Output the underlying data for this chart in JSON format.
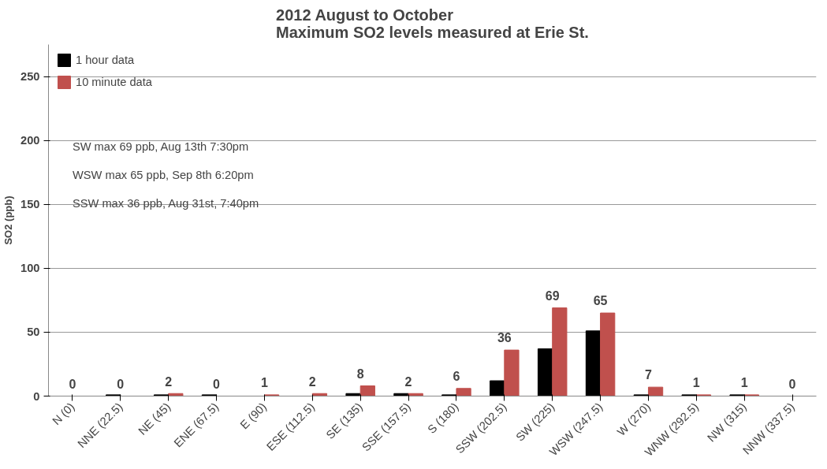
{
  "chart_data": {
    "type": "bar",
    "title": "2012 August to October\nMaximum SO2 levels measured at Erie St.",
    "ylabel": "SO2 (ppb)",
    "categories": [
      "N (0)",
      "NNE (22.5)",
      "NE (45)",
      "ENE (67.5)",
      "E (90)",
      "ESE (112.5)",
      "SE (135)",
      "SSE (157.5)",
      "S (180)",
      "SSW (202.5)",
      "SW (225)",
      "WSW (247.5)",
      "W (270)",
      "WNW (292.5)",
      "NW (315)",
      "NNW (337.5)"
    ],
    "series": [
      {
        "name": "1 hour data",
        "color": "#000000",
        "values": [
          0,
          1,
          1,
          1,
          0,
          0,
          2,
          2,
          1,
          12,
          37,
          51,
          1,
          1,
          1,
          0
        ]
      },
      {
        "name": "10 minute data",
        "color": "#c0504d",
        "values": [
          0,
          0,
          2,
          0,
          1,
          2,
          8,
          2,
          6,
          36,
          69,
          65,
          7,
          1,
          1,
          0
        ],
        "value_labels": [
          "0",
          "0",
          "2",
          "0",
          "1",
          "2",
          "8",
          "2",
          "6",
          "36",
          "69",
          "65",
          "7",
          "1",
          "1",
          "0"
        ]
      }
    ],
    "ylim": [
      0,
      275
    ],
    "yticks": [
      0,
      50,
      100,
      150,
      200,
      250
    ],
    "grid": "y",
    "legend": "top left",
    "annotations": [
      "SW  max 69 ppb, Aug 13th 7:30pm",
      "WSW max 65 ppb, Sep 8th 6:20pm",
      "SSW max 36 ppb, Aug 31st, 7:40pm"
    ]
  }
}
